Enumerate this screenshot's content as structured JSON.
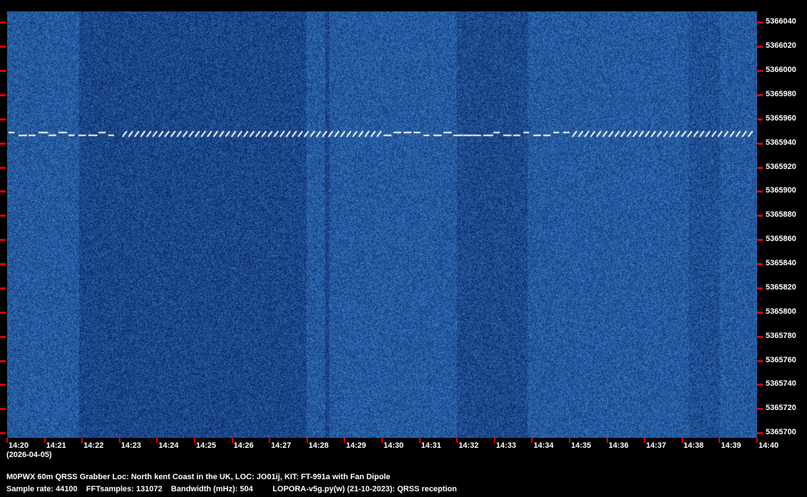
{
  "chart_data": {
    "type": "heatmap",
    "title": "M0PWX 60m QRSS Grabber Loc: North kent Coast in the UK, LOC: JO01ij, KIT: FT-991a with Fan Dipole",
    "date": "(2026-04-05)",
    "x_ticks": [
      "14:20",
      "14:21",
      "14:22",
      "14:23",
      "14:24",
      "14:25",
      "14:26",
      "14:27",
      "14:28",
      "14:29",
      "14:30",
      "14:31",
      "14:32",
      "14:33",
      "14:34",
      "14:35",
      "14:36",
      "14:37",
      "14:38",
      "14:39",
      "14:40"
    ],
    "y_ticks": [
      "5366040",
      "5366020",
      "5366000",
      "5365980",
      "5365960",
      "5365940",
      "5365920",
      "5365900",
      "5365880",
      "5365860",
      "5365840",
      "5365820",
      "5365800",
      "5365780",
      "5365760",
      "5365740",
      "5365720",
      "5365700"
    ],
    "ylim": [
      5365696,
      5366049
    ],
    "signal": {
      "frequency": 5365947,
      "segments": [
        {
          "from": "14:20",
          "to": "14:23",
          "mode": "dashes"
        },
        {
          "from": "14:23",
          "to": "14:30",
          "mode": "slashes"
        },
        {
          "from": "14:30",
          "to": "14:35",
          "mode": "dashes"
        },
        {
          "from": "14:35",
          "to": "14:40",
          "mode": "slashes"
        }
      ]
    },
    "colors": {
      "background": "#0a3a80",
      "noise": "#2a64b8",
      "signal": "#ffffff",
      "tick": "#e00000"
    }
  },
  "footer": {
    "line1": "M0PWX 60m QRSS Grabber Loc: North kent Coast in the UK, LOC: JO01ij, KIT: FT-991a with Fan Dipole",
    "line2": "Sample rate: 44100    FFTsamples: 131072    Bandwidth (mHz): 504         LOPORA-v5g.py(w) (21-10-2023): QRSS reception"
  }
}
